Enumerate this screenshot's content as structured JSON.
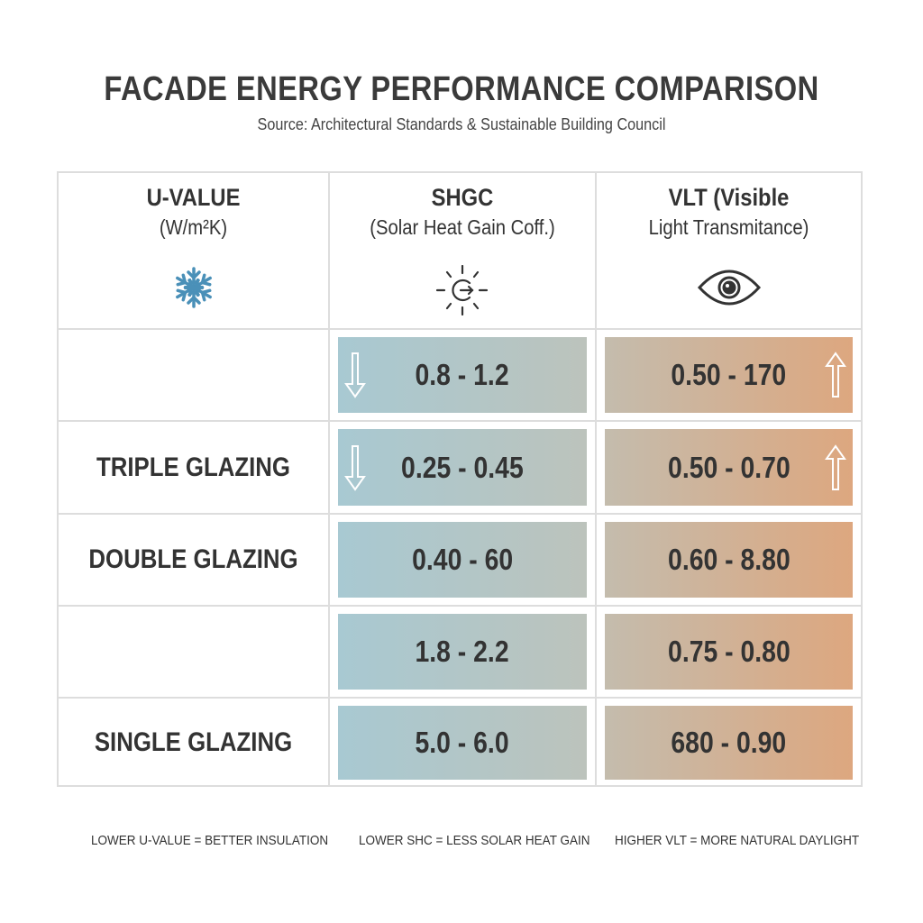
{
  "title": "FACADE ENERGY PERFORMANCE COMPARISON",
  "subtitle": "Source: Architectural Standards & Sustainable Building Council",
  "headers": [
    {
      "title": "U-VALUE",
      "sub": "(W/m²K)",
      "icon": "snowflake-icon"
    },
    {
      "title": "SHGC",
      "sub": "(Solar Heat Gain Coff.)",
      "icon": "sun-icon"
    },
    {
      "title": "VLT (Visible",
      "sub": "Light Transmitance)",
      "icon": "eye-icon"
    }
  ],
  "rows": [
    {
      "label": "",
      "shgc": "0.8 - 1.2",
      "vlt": "0.50 - 170",
      "arrows": true
    },
    {
      "label": "TRIPLE GLAZING",
      "shgc": "0.25 - 0.45",
      "vlt": "0.50 - 0.70",
      "arrows": true
    },
    {
      "label": "DOUBLE GLAZING",
      "shgc": "0.40 - 60",
      "vlt": "0.60 - 8.80",
      "arrows": false
    },
    {
      "label": "",
      "shgc": "1.8 - 2.2",
      "vlt": "0.75 - 0.80",
      "arrows": false
    },
    {
      "label": "SINGLE GLAZING",
      "shgc": "5.0 - 6.0",
      "vlt": "680 - 0.90",
      "arrows": false
    }
  ],
  "footer": [
    "LOWER U-VALUE = BETTER INSULATION",
    "LOWER SHC = LESS SOLAR HEAT GAIN",
    "HIGHER VLT = MORE NATURAL DAYLIGHT"
  ],
  "colors": {
    "cool": "#a8c9d2",
    "warm": "#dda77f",
    "snowflake": "#4a90b8",
    "border": "#dddddd"
  }
}
